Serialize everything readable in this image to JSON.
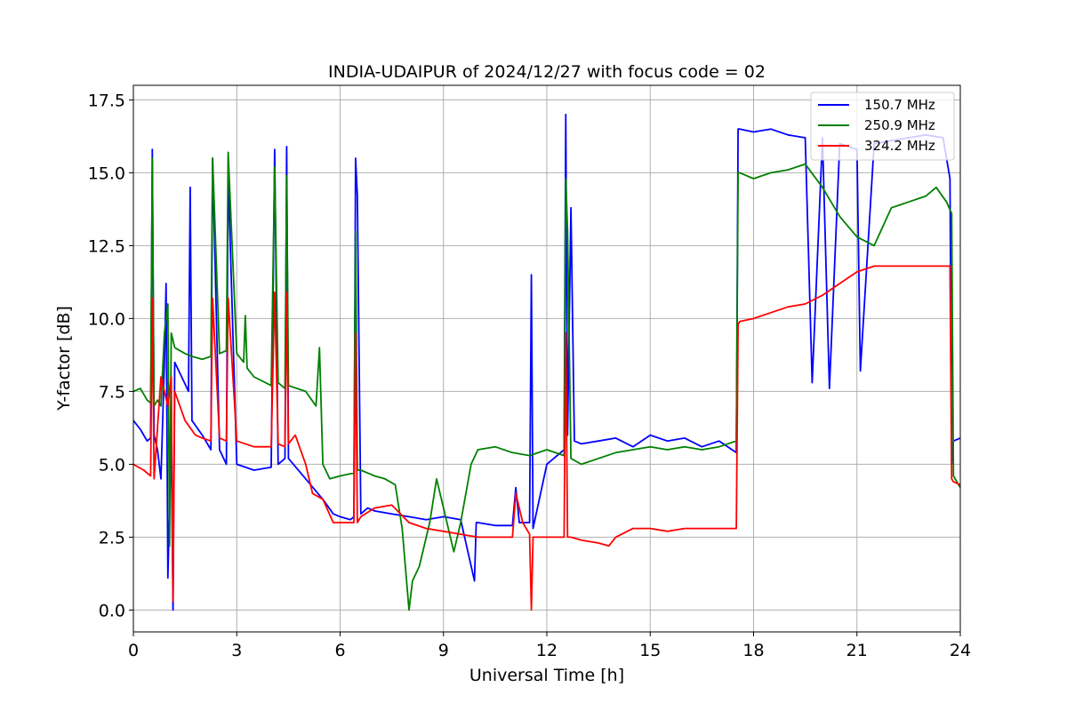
{
  "chart_data": {
    "type": "line",
    "title": "INDIA-UDAIPUR of 2024/12/27 with focus code = 02",
    "xlabel": "Universal Time [h]",
    "ylabel": "Y-factor [dB]",
    "xlim": [
      0,
      24
    ],
    "ylim": [
      -0.75,
      18
    ],
    "xticks": [
      0,
      3,
      6,
      9,
      12,
      15,
      18,
      21,
      24
    ],
    "xtick_labels": [
      "0",
      "3",
      "6",
      "9",
      "12",
      "15",
      "18",
      "21",
      "24"
    ],
    "yticks": [
      0,
      2.5,
      5,
      7.5,
      10,
      12.5,
      15,
      17.5
    ],
    "ytick_labels": [
      "0.0",
      "2.5",
      "5.0",
      "7.5",
      "10.0",
      "12.5",
      "15.0",
      "17.5"
    ],
    "grid": true,
    "legend_position": "top-right",
    "series": [
      {
        "name": "150.7 MHz",
        "color": "#0000ff",
        "x": [
          0,
          0.2,
          0.4,
          0.5,
          0.55,
          0.6,
          0.7,
          0.8,
          0.9,
          0.95,
          1.0,
          1.1,
          1.15,
          1.2,
          1.4,
          1.6,
          1.65,
          1.7,
          2.0,
          2.25,
          2.3,
          2.5,
          2.7,
          2.75,
          3.0,
          3.5,
          4.0,
          4.1,
          4.2,
          4.4,
          4.45,
          4.5,
          5.0,
          5.5,
          5.8,
          6.0,
          6.3,
          6.4,
          6.45,
          6.5,
          6.6,
          6.8,
          7.0,
          7.5,
          8.0,
          8.5,
          9.0,
          9.5,
          9.9,
          9.95,
          10.0,
          10.5,
          11.0,
          11.1,
          11.2,
          11.5,
          11.55,
          11.6,
          12.0,
          12.5,
          12.55,
          12.6,
          12.7,
          12.8,
          13.0,
          13.5,
          14.0,
          14.5,
          15.0,
          15.5,
          16.0,
          16.5,
          17.0,
          17.5,
          17.55,
          17.6,
          18.0,
          18.5,
          19.0,
          19.5,
          19.7,
          20.0,
          20.2,
          20.5,
          21.0,
          21.1,
          21.5,
          22.0,
          22.5,
          23.0,
          23.5,
          23.7,
          23.75,
          23.8,
          24.0
        ],
        "y": [
          6.5,
          6.2,
          5.8,
          5.9,
          15.8,
          6.0,
          5.5,
          4.5,
          8.5,
          11.2,
          1.1,
          6.0,
          0.0,
          8.5,
          8.0,
          7.5,
          14.5,
          6.5,
          6.0,
          5.5,
          15.5,
          5.5,
          5.0,
          15.0,
          5.0,
          4.8,
          4.9,
          15.8,
          5.0,
          5.2,
          15.9,
          5.2,
          4.5,
          3.8,
          3.3,
          3.2,
          3.1,
          3.2,
          15.5,
          14.2,
          3.3,
          3.5,
          3.4,
          3.3,
          3.2,
          3.1,
          3.2,
          3.1,
          1.0,
          3.0,
          3.0,
          2.9,
          2.9,
          4.2,
          3.0,
          3.0,
          11.5,
          2.8,
          5.0,
          5.5,
          17.0,
          6.0,
          13.8,
          5.8,
          5.7,
          5.8,
          5.9,
          5.6,
          6.0,
          5.8,
          5.9,
          5.6,
          5.8,
          5.4,
          16.5,
          16.5,
          16.4,
          16.5,
          16.3,
          16.2,
          7.8,
          16.2,
          7.6,
          16.0,
          15.8,
          8.2,
          16.0,
          16.1,
          16.2,
          16.3,
          16.2,
          14.8,
          5.0,
          5.8,
          5.9
        ]
      },
      {
        "name": "250.9 MHz",
        "color": "#008000",
        "x": [
          0,
          0.2,
          0.4,
          0.5,
          0.55,
          0.6,
          0.7,
          0.8,
          0.9,
          1.0,
          1.05,
          1.1,
          1.2,
          1.5,
          1.7,
          2.0,
          2.25,
          2.3,
          2.5,
          2.7,
          2.75,
          3.0,
          3.2,
          3.25,
          3.3,
          3.5,
          4.0,
          4.1,
          4.2,
          4.4,
          4.45,
          4.5,
          5.0,
          5.3,
          5.4,
          5.5,
          5.7,
          6.0,
          6.4,
          6.45,
          6.5,
          6.6,
          6.8,
          7.0,
          7.3,
          7.6,
          7.8,
          8.0,
          8.1,
          8.3,
          8.6,
          8.8,
          9.0,
          9.2,
          9.3,
          9.5,
          9.8,
          10.0,
          10.5,
          11.0,
          11.5,
          12.0,
          12.5,
          12.55,
          12.6,
          12.7,
          13.0,
          13.5,
          14.0,
          14.5,
          15.0,
          15.5,
          16.0,
          16.5,
          17.0,
          17.5,
          17.55,
          17.6,
          18.0,
          18.5,
          19.0,
          19.5,
          20.0,
          20.5,
          21.0,
          21.5,
          22.0,
          22.5,
          23.0,
          23.3,
          23.6,
          23.75,
          23.8,
          24.0
        ],
        "y": [
          7.5,
          7.6,
          7.2,
          7.1,
          15.5,
          7.0,
          7.2,
          7.0,
          9.5,
          10.5,
          2.2,
          9.5,
          9.0,
          8.8,
          8.7,
          8.6,
          8.7,
          15.5,
          8.8,
          8.9,
          15.7,
          8.8,
          8.5,
          10.1,
          8.3,
          8.0,
          7.7,
          15.2,
          7.8,
          7.6,
          14.9,
          7.7,
          7.5,
          7.0,
          9.0,
          5.0,
          4.5,
          4.6,
          4.7,
          13.0,
          4.8,
          4.8,
          4.7,
          4.6,
          4.5,
          4.3,
          2.8,
          0.0,
          1.0,
          1.5,
          3.0,
          4.5,
          3.5,
          2.5,
          2.0,
          3.0,
          5.0,
          5.5,
          5.6,
          5.4,
          5.3,
          5.5,
          5.3,
          14.8,
          13.0,
          5.2,
          5.0,
          5.2,
          5.4,
          5.5,
          5.6,
          5.5,
          5.6,
          5.5,
          5.6,
          5.8,
          15.0,
          15.0,
          14.8,
          15.0,
          15.1,
          15.3,
          14.5,
          13.5,
          12.8,
          12.5,
          13.8,
          14.0,
          14.2,
          14.5,
          14.0,
          13.6,
          4.6,
          4.2
        ]
      },
      {
        "name": "324.2 MHz",
        "color": "#ff0000",
        "x": [
          0,
          0.3,
          0.5,
          0.55,
          0.6,
          0.8,
          0.9,
          1.0,
          1.1,
          1.15,
          1.2,
          1.5,
          1.8,
          2.0,
          2.25,
          2.3,
          2.5,
          2.7,
          2.75,
          3.0,
          3.5,
          4.0,
          4.1,
          4.2,
          4.4,
          4.45,
          4.5,
          4.7,
          5.0,
          5.2,
          5.5,
          5.8,
          6.0,
          6.4,
          6.45,
          6.5,
          6.6,
          7.0,
          7.5,
          8.0,
          8.5,
          9.0,
          9.5,
          10.0,
          10.5,
          11.0,
          11.1,
          11.3,
          11.5,
          11.55,
          11.6,
          12.0,
          12.5,
          12.55,
          12.6,
          12.7,
          13.0,
          13.5,
          13.8,
          14.0,
          14.5,
          15.0,
          15.5,
          16.0,
          16.5,
          17.0,
          17.5,
          17.55,
          17.6,
          18.0,
          18.5,
          19.0,
          19.5,
          20.0,
          20.5,
          21.0,
          21.5,
          22.0,
          22.5,
          23.0,
          23.5,
          23.7,
          23.75,
          23.8,
          24.0
        ],
        "y": [
          5.0,
          4.8,
          4.6,
          10.7,
          4.5,
          8.0,
          7.5,
          7.0,
          8.0,
          0.3,
          7.5,
          6.5,
          6.0,
          5.9,
          5.8,
          10.7,
          5.9,
          5.8,
          10.7,
          5.8,
          5.6,
          5.6,
          10.9,
          5.7,
          5.6,
          10.9,
          5.7,
          6.0,
          5.0,
          4.0,
          3.8,
          3.0,
          3.0,
          3.0,
          9.5,
          3.0,
          3.2,
          3.5,
          3.6,
          3.0,
          2.8,
          2.7,
          2.6,
          2.5,
          2.5,
          2.5,
          4.0,
          3.0,
          2.6,
          0.0,
          2.5,
          2.5,
          2.5,
          9.5,
          2.5,
          2.5,
          2.4,
          2.3,
          2.2,
          2.5,
          2.8,
          2.8,
          2.7,
          2.8,
          2.8,
          2.8,
          2.8,
          9.8,
          9.9,
          10.0,
          10.2,
          10.4,
          10.5,
          10.8,
          11.2,
          11.6,
          11.8,
          11.8,
          11.8,
          11.8,
          11.8,
          11.8,
          4.5,
          4.4,
          4.3
        ]
      }
    ]
  }
}
